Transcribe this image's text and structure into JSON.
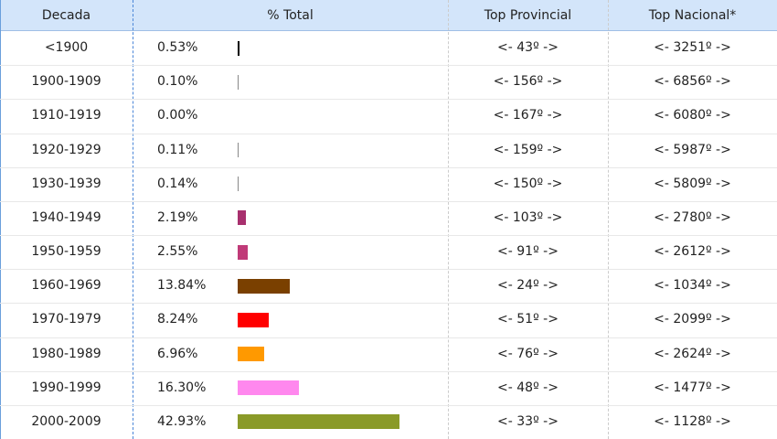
{
  "table": {
    "headers": [
      "Decada",
      "% Total",
      "Top Provincial",
      "Top Nacional*"
    ],
    "rows": [
      {
        "decade": "<1900",
        "percent": 0.53,
        "percent_label": "0.53%",
        "color": "#000000",
        "provincial": "<- 43º ->",
        "national": "<- 3251º ->"
      },
      {
        "decade": "1900-1909",
        "percent": 0.1,
        "percent_label": "0.10%",
        "color": "#888888",
        "provincial": "<- 156º ->",
        "national": "<- 6856º ->"
      },
      {
        "decade": "1910-1919",
        "percent": 0.0,
        "percent_label": "0.00%",
        "color": "#888888",
        "provincial": "<- 167º ->",
        "national": "<- 6080º ->"
      },
      {
        "decade": "1920-1929",
        "percent": 0.11,
        "percent_label": "0.11%",
        "color": "#888888",
        "provincial": "<- 159º ->",
        "national": "<- 5987º ->"
      },
      {
        "decade": "1930-1939",
        "percent": 0.14,
        "percent_label": "0.14%",
        "color": "#888888",
        "provincial": "<- 150º ->",
        "national": "<- 5809º ->"
      },
      {
        "decade": "1940-1949",
        "percent": 2.19,
        "percent_label": "2.19%",
        "color": "#a8306e",
        "provincial": "<- 103º ->",
        "national": "<- 2780º ->"
      },
      {
        "decade": "1950-1959",
        "percent": 2.55,
        "percent_label": "2.55%",
        "color": "#c03a78",
        "provincial": "<- 91º ->",
        "national": "<- 2612º ->"
      },
      {
        "decade": "1960-1969",
        "percent": 13.84,
        "percent_label": "13.84%",
        "color": "#7a4000",
        "provincial": "<- 24º ->",
        "national": "<- 1034º ->"
      },
      {
        "decade": "1970-1979",
        "percent": 8.24,
        "percent_label": "8.24%",
        "color": "#ff0000",
        "provincial": "<- 51º ->",
        "national": "<- 2099º ->"
      },
      {
        "decade": "1980-1989",
        "percent": 6.96,
        "percent_label": "6.96%",
        "color": "#ff9900",
        "provincial": "<- 76º ->",
        "national": "<- 2624º ->"
      },
      {
        "decade": "1990-1999",
        "percent": 16.3,
        "percent_label": "16.30%",
        "color": "#ff88ee",
        "provincial": "<- 48º ->",
        "national": "<- 1477º ->"
      },
      {
        "decade": "2000-2009",
        "percent": 42.93,
        "percent_label": "42.93%",
        "color": "#8a9a28",
        "provincial": "<- 33º ->",
        "national": "<- 1128º ->"
      }
    ]
  }
}
